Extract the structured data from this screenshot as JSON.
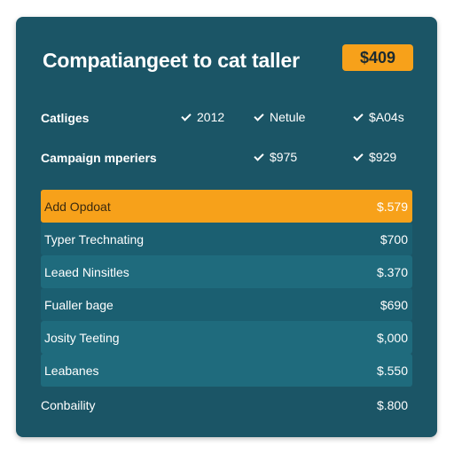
{
  "header": {
    "title": "Compatiangeet to cat taller",
    "price_badge": "$409"
  },
  "filters": {
    "row1": {
      "label": "Catliges",
      "options": [
        "2012",
        "Netule",
        "$A04s"
      ]
    },
    "row2": {
      "label": "Campaign mperiers",
      "options": [
        "$975",
        "$929"
      ]
    }
  },
  "table": {
    "rows": [
      {
        "name": "Add Opdoat",
        "value": "$.579"
      },
      {
        "name": "Typer Trechnating",
        "value": "$700"
      },
      {
        "name": "Leaed Ninsitles",
        "value": "$.370"
      },
      {
        "name": "Fualler bage",
        "value": "$690"
      },
      {
        "name": "Josity Teeting",
        "value": "$,000"
      },
      {
        "name": "Leabanes",
        "value": "$.550"
      }
    ],
    "footer": {
      "name": "Conbaility",
      "value": "$.800"
    }
  },
  "colors": {
    "card_background": "#1b5566",
    "accent": "#f7a11a",
    "row_stripe": "#1f6b7d"
  }
}
